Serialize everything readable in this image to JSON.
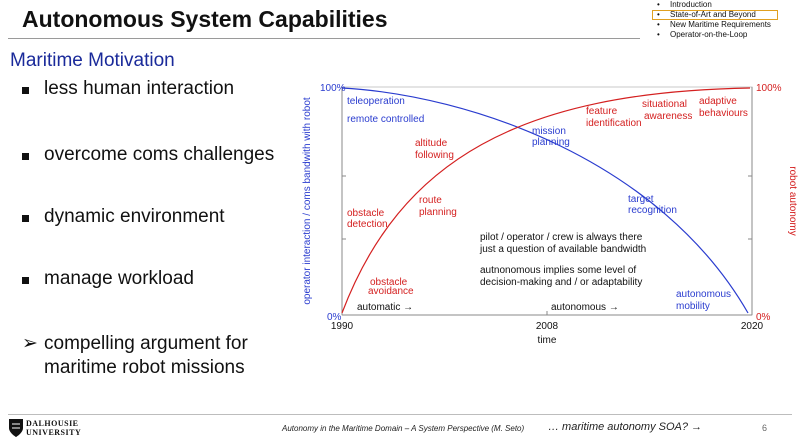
{
  "slide": {
    "title": "Autonomous System Capabilities",
    "subtitle": "Maritime Motivation",
    "nav": [
      {
        "label": "Introduction",
        "active": false
      },
      {
        "label": "State-of-Art and Beyond",
        "active": true
      },
      {
        "label": "New Maritime Requirements",
        "active": false
      },
      {
        "label": "Operator-on-the-Loop",
        "active": false
      }
    ],
    "bullets": [
      "less human interaction",
      "overcome coms challenges",
      "dynamic environment",
      "manage workload"
    ],
    "conclusion_mark": "➢",
    "conclusion_lines": [
      "compelling argument for",
      "maritime robot missions"
    ]
  },
  "diagram": {
    "x_ticks": [
      "1990",
      "2008",
      "2020"
    ],
    "x_label": "time",
    "y_left_label": "operator interaction / coms bandwith with robot",
    "y_right_label": "robot autonomy",
    "left_top": "100%",
    "left_bottom": "0%",
    "right_top": "100%",
    "right_bottom": "0%",
    "blue_color": "#2a3ccf",
    "red_color": "#d42020",
    "blue_labels": {
      "teleoperation": "teleoperation",
      "remote_controlled": "remote controlled",
      "mission": [
        "mission",
        "planning"
      ],
      "target": [
        "target",
        "recognition"
      ],
      "autonomous_mobility": [
        "autonomous",
        "mobility"
      ]
    },
    "red_labels": {
      "obstacle_avoidance": [
        "obstacle",
        "avoidance"
      ],
      "obstacle_detection": [
        "obstacle",
        "detection"
      ],
      "route_planning": [
        "route",
        "planning"
      ],
      "altitude_following": [
        "altitude",
        "following"
      ],
      "feature_identification": [
        "feature",
        "identification"
      ],
      "situational_awareness": [
        "situational",
        "awareness"
      ],
      "adaptive_behaviours": [
        "adaptive",
        "behaviours"
      ]
    },
    "notes": {
      "note1": [
        "pilot / operator / crew is always there",
        "just a question of available bandwidth"
      ],
      "note2": [
        "autnonomous implies some level of",
        "decision-making and / or adaptability"
      ]
    },
    "phase_labels": {
      "automatic": "automatic →",
      "autonomous": "autonomous →"
    }
  },
  "footer": {
    "logo_lines": [
      "DALHOUSIE",
      "UNIVERSITY"
    ],
    "center": "Autonomy in the Maritime Domain – A System Perspective (M. Seto)",
    "next": "… maritime autonomy SOA? →",
    "page": "6"
  }
}
